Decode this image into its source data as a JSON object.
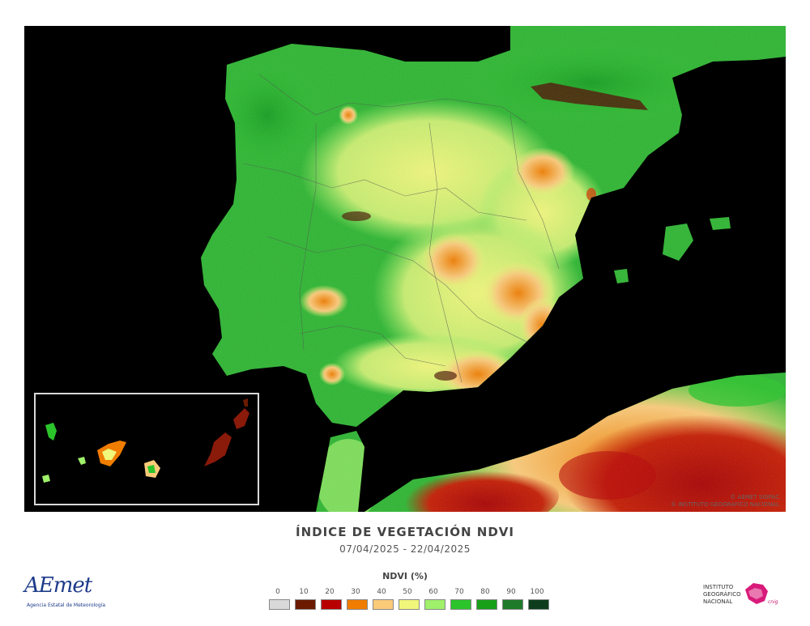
{
  "map": {
    "title": "ÍNDICE DE VEGETACIÓN NDVI",
    "date_range": "07/04/2025 - 22/04/2025",
    "watermark_line1": "© AEMET SIGPAC",
    "watermark_line2": "© INSTITUTO GEOGRÁFICO NACIONAL"
  },
  "legend": {
    "title": "NDVI (%)",
    "ticks": [
      "0",
      "10",
      "20",
      "30",
      "40",
      "50",
      "60",
      "70",
      "80",
      "90",
      "100"
    ],
    "colors": [
      "#d9d9d9",
      "#6b1a00",
      "#b80000",
      "#f07d00",
      "#fbcb7a",
      "#f0f77a",
      "#9ff06a",
      "#2bc42b",
      "#19a019",
      "#1f7a2a",
      "#0d3d1c"
    ]
  },
  "logos": {
    "aemet_word": "AEmet",
    "aemet_sub": "Agencia Estatal de Meteorología",
    "ign_line1": "INSTITUTO",
    "ign_line2": "GEOGRÁFICO",
    "ign_line3": "NACIONAL",
    "ign_script": "cnig"
  }
}
